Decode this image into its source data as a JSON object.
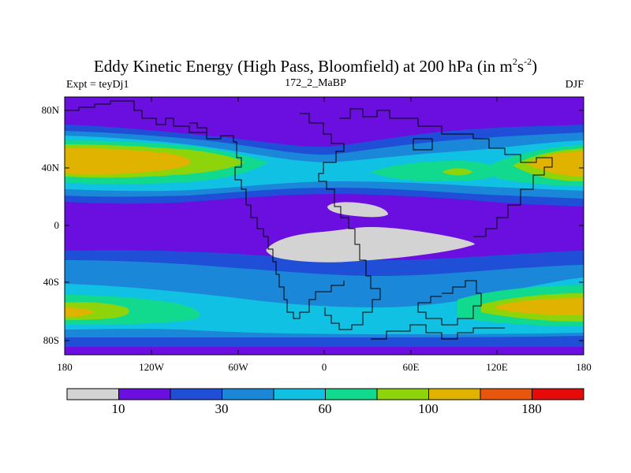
{
  "title": {
    "main": "Eddy Kinetic Energy (High Pass, Bloomfield) at 200 hPa (in m",
    "sup1": "2",
    "mid": "s",
    "sup2": "-2",
    "end": ")"
  },
  "left_string": "Expt = teyDj1",
  "center_string": "172_2_MaBP",
  "right_string": "DJF",
  "y_axis_labels": [
    "80N",
    "40N",
    "0",
    "40S",
    "80S"
  ],
  "x_axis_labels": [
    "180",
    "120W",
    "60W",
    "0",
    "60E",
    "120E",
    "180"
  ],
  "colorbar": {
    "labels": [
      "10",
      "30",
      "60",
      "100",
      "180"
    ],
    "colors": [
      "#d3d3d3",
      "#6a0fe0",
      "#1f4fd6",
      "#1a87d8",
      "#11c1e3",
      "#11d98e",
      "#8dd50a",
      "#dfb300",
      "#e8550d",
      "#e60a0a"
    ]
  },
  "map_colors": {
    "gray": "#d3d3d3",
    "purple": "#6a0fe0",
    "blue": "#1f4fd6",
    "mid_blue": "#1a87d8",
    "cyan": "#11c1e3",
    "green": "#11d98e",
    "yellow_green": "#8dd50a",
    "yellow": "#dfb300"
  }
}
